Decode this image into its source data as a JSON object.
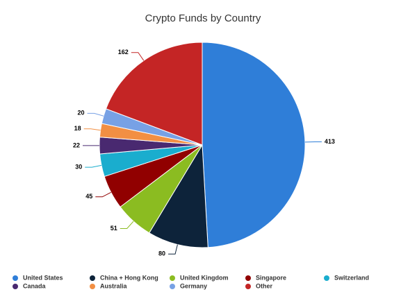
{
  "chart_data": {
    "type": "pie",
    "title": "Crypto Funds by Country",
    "categories": [
      "United States",
      "China + Hong Kong",
      "United Kingdom",
      "Singapore",
      "Switzerland",
      "Canada",
      "Australia",
      "Germany",
      "Other"
    ],
    "values": [
      413,
      80,
      51,
      45,
      30,
      22,
      18,
      20,
      162
    ],
    "colors": [
      "#2f7ed8",
      "#0d233a",
      "#8bbc21",
      "#910000",
      "#1aadce",
      "#492970",
      "#f28f43",
      "#77a1e5",
      "#c42525"
    ],
    "legend": "bottom"
  }
}
